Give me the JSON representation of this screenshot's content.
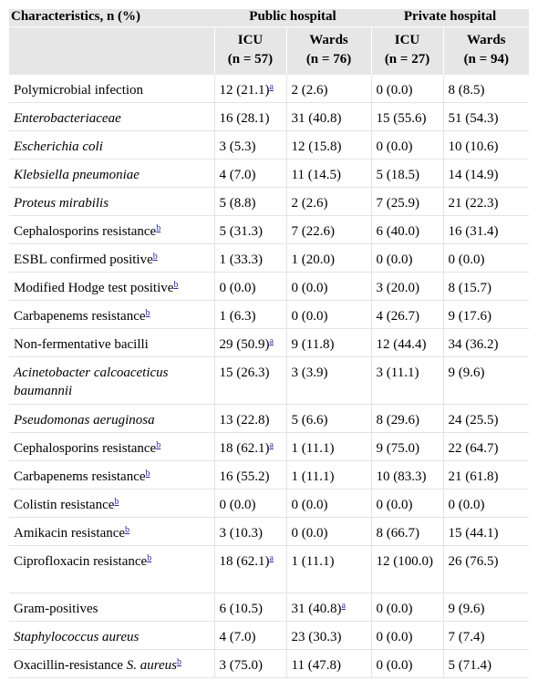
{
  "header": {
    "characteristics": "Characteristics, n (%)",
    "public_hospital": "Public hospital",
    "private_hospital": "Private hospital",
    "cols": [
      {
        "name": "ICU",
        "n": "(n = 57)"
      },
      {
        "name": "Wards",
        "n": "(n = 76)"
      },
      {
        "name": "ICU",
        "n": "(n = 27)"
      },
      {
        "name": "Wards",
        "n": "(n = 94)"
      }
    ]
  },
  "rows": [
    {
      "label": "Polymicrobial infection",
      "italic": false,
      "sup": "",
      "cells": [
        {
          "v": "12 (21.1)",
          "s": "a"
        },
        {
          "v": "2 (2.6)",
          "s": ""
        },
        {
          "v": "0 (0.0)",
          "s": ""
        },
        {
          "v": "8 (8.5)",
          "s": ""
        }
      ]
    },
    {
      "label": "Enterobacteriaceae",
      "italic": true,
      "sup": "",
      "cells": [
        {
          "v": "16 (28.1)",
          "s": ""
        },
        {
          "v": "31 (40.8)",
          "s": ""
        },
        {
          "v": "15 (55.6)",
          "s": ""
        },
        {
          "v": "51 (54.3)",
          "s": ""
        }
      ]
    },
    {
      "label": "Escherichia coli",
      "italic": true,
      "sup": "",
      "cells": [
        {
          "v": "3 (5.3)",
          "s": ""
        },
        {
          "v": "12 (15.8)",
          "s": ""
        },
        {
          "v": "0 (0.0)",
          "s": ""
        },
        {
          "v": "10 (10.6)",
          "s": ""
        }
      ]
    },
    {
      "label": "Klebsiella pneumoniae",
      "italic": true,
      "sup": "",
      "cells": [
        {
          "v": "4 (7.0)",
          "s": ""
        },
        {
          "v": "11 (14.5)",
          "s": ""
        },
        {
          "v": "5 (18.5)",
          "s": ""
        },
        {
          "v": "14 (14.9)",
          "s": ""
        }
      ]
    },
    {
      "label": "Proteus mirabilis",
      "italic": true,
      "sup": "",
      "cells": [
        {
          "v": "5 (8.8)",
          "s": ""
        },
        {
          "v": "2 (2.6)",
          "s": ""
        },
        {
          "v": "7 (25.9)",
          "s": ""
        },
        {
          "v": "21 (22.3)",
          "s": ""
        }
      ]
    },
    {
      "label": "Cephalosporins resistance",
      "italic": false,
      "sup": "b",
      "cells": [
        {
          "v": "5 (31.3)",
          "s": ""
        },
        {
          "v": "7 (22.6)",
          "s": ""
        },
        {
          "v": "6 (40.0)",
          "s": ""
        },
        {
          "v": "16 (31.4)",
          "s": ""
        }
      ]
    },
    {
      "label": "ESBL confirmed positive",
      "italic": false,
      "sup": "b",
      "cells": [
        {
          "v": "1 (33.3)",
          "s": ""
        },
        {
          "v": "1 (20.0)",
          "s": ""
        },
        {
          "v": "0 (0.0)",
          "s": ""
        },
        {
          "v": "0 (0.0)",
          "s": ""
        }
      ]
    },
    {
      "label": "Modified Hodge test positive",
      "italic": false,
      "sup": "b",
      "cells": [
        {
          "v": "0 (0.0)",
          "s": ""
        },
        {
          "v": "0 (0.0)",
          "s": ""
        },
        {
          "v": "3 (20.0)",
          "s": ""
        },
        {
          "v": "8 (15.7)",
          "s": ""
        }
      ]
    },
    {
      "label": "Carbapenems resistance",
      "italic": false,
      "sup": "b",
      "cells": [
        {
          "v": "1 (6.3)",
          "s": ""
        },
        {
          "v": "0 (0.0)",
          "s": ""
        },
        {
          "v": "4 (26.7)",
          "s": ""
        },
        {
          "v": "9 (17.6)",
          "s": ""
        }
      ]
    },
    {
      "label": "Non-fermentative bacilli",
      "italic": false,
      "sup": "",
      "cells": [
        {
          "v": "29 (50.9)",
          "s": "a"
        },
        {
          "v": "9 (11.8)",
          "s": ""
        },
        {
          "v": "12 (44.4)",
          "s": ""
        },
        {
          "v": "34 (36.2)",
          "s": ""
        }
      ]
    },
    {
      "label": "Acinetobacter calcoaceticus baumannii",
      "italic": true,
      "sup": "",
      "tall": true,
      "cells": [
        {
          "v": "15 (26.3)",
          "s": ""
        },
        {
          "v": "3 (3.9)",
          "s": ""
        },
        {
          "v": "3 (11.1)",
          "s": ""
        },
        {
          "v": "9 (9.6)",
          "s": ""
        }
      ]
    },
    {
      "label": "Pseudomonas aeruginosa",
      "italic": true,
      "sup": "",
      "cells": [
        {
          "v": "13 (22.8)",
          "s": ""
        },
        {
          "v": "5 (6.6)",
          "s": ""
        },
        {
          "v": "8 (29.6)",
          "s": ""
        },
        {
          "v": "24 (25.5)",
          "s": ""
        }
      ]
    },
    {
      "label": "Cephalosporins resistance",
      "italic": false,
      "sup": "b",
      "cells": [
        {
          "v": "18 (62.1)",
          "s": "a"
        },
        {
          "v": "1 (11.1)",
          "s": ""
        },
        {
          "v": "9 (75.0)",
          "s": ""
        },
        {
          "v": "22 (64.7)",
          "s": ""
        }
      ]
    },
    {
      "label": "Carbapenems resistance",
      "italic": false,
      "sup": "b",
      "cells": [
        {
          "v": "16 (55.2)",
          "s": ""
        },
        {
          "v": "1 (11.1)",
          "s": ""
        },
        {
          "v": "10 (83.3)",
          "s": ""
        },
        {
          "v": "21 (61.8)",
          "s": ""
        }
      ]
    },
    {
      "label": "Colistin resistance",
      "italic": false,
      "sup": "b",
      "cells": [
        {
          "v": "0 (0.0)",
          "s": ""
        },
        {
          "v": "0 (0.0)",
          "s": ""
        },
        {
          "v": "0 (0.0)",
          "s": ""
        },
        {
          "v": "0 (0.0)",
          "s": ""
        }
      ]
    },
    {
      "label": "Amikacin resistance",
      "italic": false,
      "sup": "b",
      "cells": [
        {
          "v": "3 (10.3)",
          "s": ""
        },
        {
          "v": "0 (0.0)",
          "s": ""
        },
        {
          "v": "8 (66.7)",
          "s": ""
        },
        {
          "v": "15 (44.1)",
          "s": ""
        }
      ]
    },
    {
      "label": "Ciprofloxacin resistance",
      "italic": false,
      "sup": "b",
      "tall": true,
      "cells": [
        {
          "v": "18 (62.1)",
          "s": "a"
        },
        {
          "v": "1 (11.1)",
          "s": ""
        },
        {
          "v": "12 (100.0)",
          "s": ""
        },
        {
          "v": "26 (76.5)",
          "s": ""
        }
      ]
    },
    {
      "label": "Gram-positives",
      "italic": false,
      "sup": "",
      "cells": [
        {
          "v": "6 (10.5)",
          "s": ""
        },
        {
          "v": "31 (40.8)",
          "s": "a"
        },
        {
          "v": "0 (0.0)",
          "s": ""
        },
        {
          "v": "9 (9.6)",
          "s": ""
        }
      ]
    },
    {
      "label": "Staphylococcus aureus",
      "italic": true,
      "sup": "",
      "cells": [
        {
          "v": "4 (7.0)",
          "s": ""
        },
        {
          "v": "23 (30.3)",
          "s": ""
        },
        {
          "v": "0 (0.0)",
          "s": ""
        },
        {
          "v": "7 (7.4)",
          "s": ""
        }
      ]
    },
    {
      "label": "Oxacillin-resistance ",
      "label_italic_tail": "S. aureus",
      "italic": false,
      "sup": "b",
      "cells": [
        {
          "v": "3 (75.0)",
          "s": ""
        },
        {
          "v": "11 (47.8)",
          "s": ""
        },
        {
          "v": "0 (0.0)",
          "s": ""
        },
        {
          "v": "5 (71.4)",
          "s": ""
        }
      ]
    }
  ]
}
